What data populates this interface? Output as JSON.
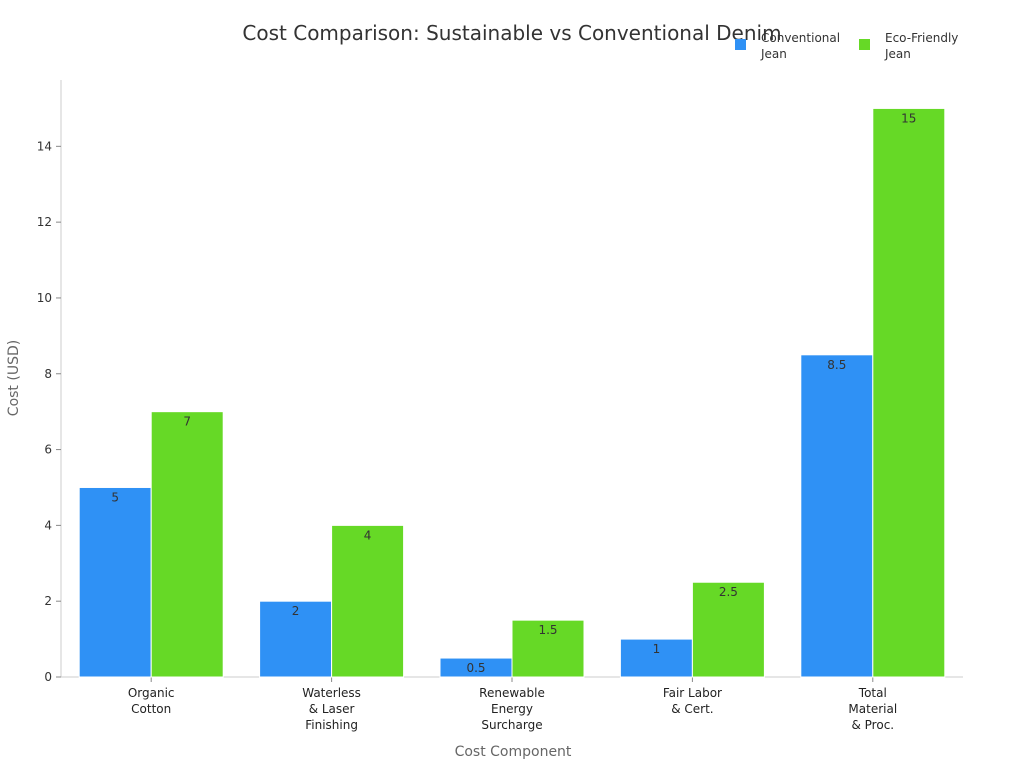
{
  "chart_data": {
    "type": "bar",
    "title": "Cost Comparison: Sustainable vs Conventional Denim",
    "xlabel": "Cost Component",
    "ylabel": "Cost (USD)",
    "categories": [
      [
        "Organic",
        "Cotton"
      ],
      [
        "Waterless",
        "& Laser",
        "Finishing"
      ],
      [
        "Renewable",
        "Energy",
        "Surcharge"
      ],
      [
        "Fair Labor",
        "& Cert."
      ],
      [
        "Total",
        "Material",
        "& Proc."
      ]
    ],
    "series": [
      {
        "name": [
          "Conventional",
          "Jean"
        ],
        "color": "#2f91f5",
        "values": [
          5,
          2,
          0.5,
          1,
          8.5
        ],
        "labels": [
          "5",
          "2",
          "0.5",
          "1",
          "8.5"
        ]
      },
      {
        "name": [
          "Eco-Friendly",
          "Jean"
        ],
        "color": "#66d926",
        "values": [
          7,
          4,
          1.5,
          2.5,
          15
        ],
        "labels": [
          "7",
          "4",
          "1.5",
          "2.5",
          "15"
        ]
      }
    ],
    "ylim": [
      0,
      15.75
    ],
    "yticks": [
      0,
      2,
      4,
      6,
      8,
      10,
      12,
      14
    ],
    "grid": false,
    "legend": "top-right"
  }
}
